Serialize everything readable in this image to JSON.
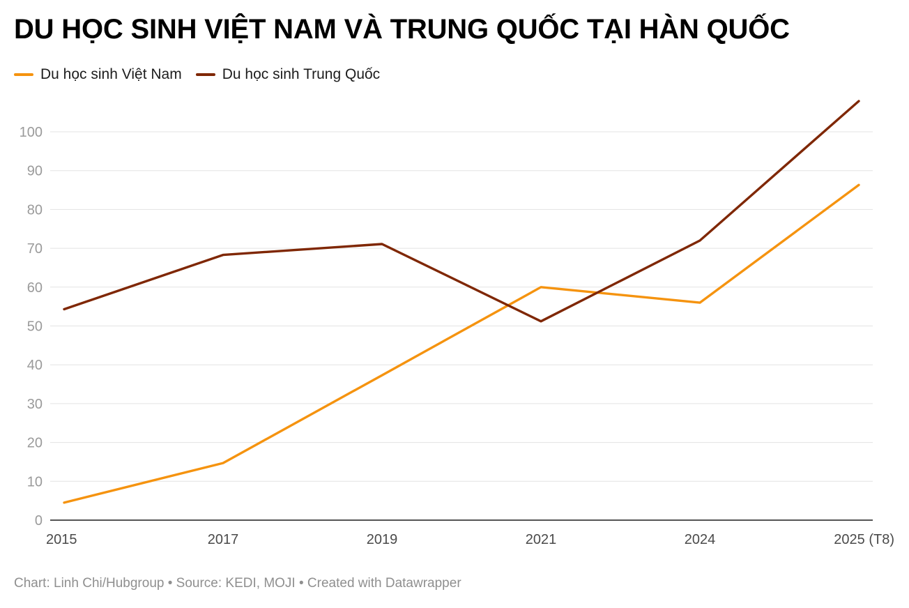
{
  "title": "DU HỌC SINH VIỆT NAM VÀ TRUNG QUỐC TẠI HÀN QUỐC",
  "footer": {
    "text": "Chart: Linh Chi/Hubgroup • Source: KEDI, MOJI • Created with Datawrapper"
  },
  "colors": {
    "vietnam": "#f5930f",
    "china": "#7f2704",
    "grid": "#e3e3e3",
    "axis": "#1d1d1d"
  },
  "chart_data": {
    "type": "line",
    "title": "DU HỌC SINH VIỆT NAM VÀ TRUNG QUỐC TẠI HÀN QUỐC",
    "xlabel": "",
    "ylabel": "",
    "categories": [
      "2015",
      "2017",
      "2019",
      "2021",
      "2024",
      "2025 (T8)"
    ],
    "yticks": [
      0,
      10,
      20,
      30,
      40,
      50,
      60,
      70,
      80,
      90,
      100
    ],
    "ylim": [
      0,
      100
    ],
    "grid": true,
    "legend_position": "top-left",
    "series": [
      {
        "name": "Du học sinh Việt Nam",
        "color_key": "vietnam",
        "values": [
          4.5,
          14.7,
          37.3,
          60.0,
          56.0,
          86.3
        ]
      },
      {
        "name": "Du học sinh Trung Quốc",
        "color_key": "china",
        "values": [
          54.3,
          68.3,
          71.1,
          51.2,
          72.0,
          107.9
        ]
      }
    ]
  }
}
